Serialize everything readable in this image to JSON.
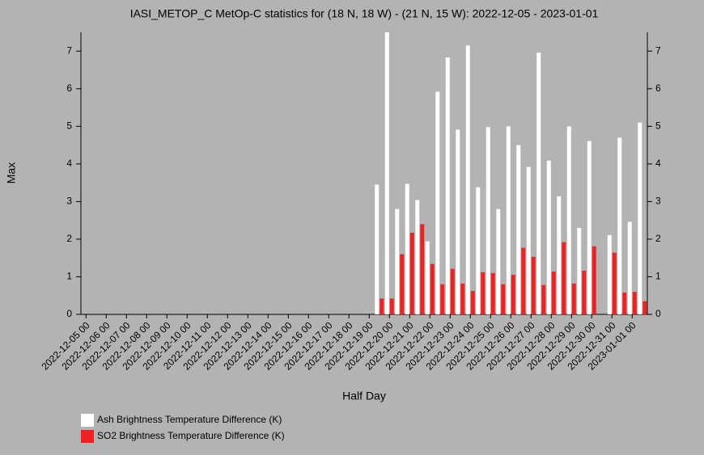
{
  "chart_data": {
    "type": "bar",
    "title": "IASI_METOP_C MetOp-C statistics for (18 N, 18 W) - (21 N, 15 W): 2022-12-05 - 2023-01-01",
    "xlabel": "Half Day",
    "ylabel": "Max",
    "categories": [
      "2022-12-05 00",
      null,
      "2022-12-06 00",
      null,
      "2022-12-07 00",
      null,
      "2022-12-08 00",
      null,
      "2022-12-09 00",
      null,
      "2022-12-10 00",
      null,
      "2022-12-11 00",
      null,
      "2022-12-12 00",
      null,
      "2022-12-13 00",
      null,
      "2022-12-14 00",
      null,
      "2022-12-15 00",
      null,
      "2022-12-16 00",
      null,
      "2022-12-17 00",
      null,
      "2022-12-18 00",
      null,
      "2022-12-19 00",
      null,
      "2022-12-20 00",
      null,
      "2022-12-21 00",
      null,
      "2022-12-22 00",
      null,
      "2022-12-23 00",
      null,
      "2022-12-24 00",
      null,
      "2022-12-25 00",
      null,
      "2022-12-26 00",
      null,
      "2022-12-27 00",
      null,
      "2022-12-28 00",
      null,
      "2022-12-29 00",
      null,
      "2022-12-30 00",
      null,
      "2022-12-31 00",
      null,
      "2023-01-01 00",
      null
    ],
    "series": [
      {
        "name": "Ash Brightness Temperature Difference (K)",
        "color": "#ffffff",
        "values": [
          null,
          null,
          null,
          null,
          null,
          null,
          null,
          null,
          null,
          null,
          null,
          null,
          null,
          null,
          null,
          null,
          null,
          null,
          null,
          null,
          null,
          null,
          null,
          null,
          null,
          null,
          null,
          null,
          null,
          3.45,
          7.5,
          2.8,
          3.47,
          3.04,
          1.94,
          5.92,
          6.83,
          4.91,
          7.15,
          3.38,
          4.98,
          2.8,
          5.0,
          4.5,
          3.92,
          6.96,
          4.09,
          3.14,
          5.0,
          2.3,
          4.61,
          null,
          2.11,
          4.7,
          2.46,
          5.1
        ]
      },
      {
        "name": "SO2 Brightness Temperature Difference (K)",
        "color": "#ee2222",
        "values": [
          null,
          null,
          null,
          null,
          null,
          null,
          null,
          null,
          null,
          null,
          null,
          null,
          null,
          null,
          null,
          null,
          null,
          null,
          null,
          null,
          null,
          null,
          null,
          null,
          null,
          null,
          null,
          null,
          null,
          0.42,
          0.42,
          1.6,
          2.17,
          2.4,
          1.34,
          0.8,
          1.21,
          0.82,
          0.62,
          1.12,
          1.1,
          0.8,
          1.05,
          1.77,
          1.53,
          0.78,
          1.14,
          1.92,
          0.82,
          1.16,
          1.81,
          null,
          1.64,
          0.58,
          0.6,
          0.35
        ]
      }
    ],
    "ylim": [
      0,
      7.5
    ],
    "yticks": [
      0,
      1,
      2,
      3,
      4,
      5,
      6,
      7
    ],
    "grid": false
  }
}
